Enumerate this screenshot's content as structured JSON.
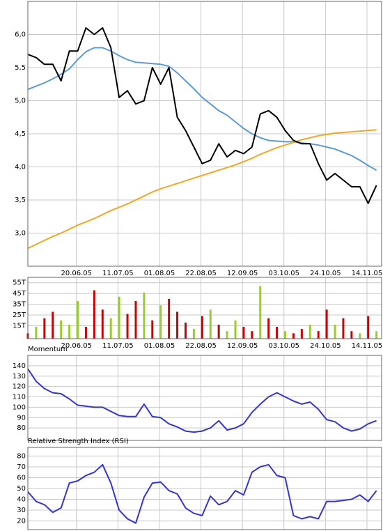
{
  "chart_data": [
    {
      "type": "line",
      "categories": [
        null,
        null,
        null,
        "20.06.05",
        null,
        null,
        null,
        null,
        "11.07.05",
        null,
        null,
        null,
        null,
        "01.08.05",
        null,
        null,
        null,
        null,
        "22.08.05",
        null,
        null,
        null,
        null,
        "12.09.05",
        null,
        null,
        null,
        null,
        "03.10.05",
        null,
        null,
        null,
        null,
        "24.10.05",
        null,
        null,
        null,
        null,
        "14.11.05",
        null,
        null,
        null,
        null
      ],
      "series": [
        {
          "color": "#5b9bd5",
          "values": [
            5.17,
            5.22,
            5.27,
            5.33,
            5.4,
            5.48,
            5.62,
            5.74,
            5.8,
            5.8,
            5.75,
            5.68,
            5.62,
            5.58,
            5.57,
            5.56,
            5.55,
            5.52,
            5.42,
            5.3,
            5.18,
            5.05,
            4.95,
            4.85,
            4.78,
            4.68,
            4.58,
            4.5,
            4.44,
            4.4,
            4.39,
            4.38,
            4.38,
            4.36,
            4.35,
            4.33,
            4.3,
            4.27,
            4.22,
            4.17,
            4.1,
            4.02,
            3.95
          ]
        },
        {
          "color": "#f5a623",
          "values": [
            2.77,
            2.83,
            2.89,
            2.95,
            3.0,
            3.06,
            3.12,
            3.17,
            3.22,
            3.28,
            3.34,
            3.39,
            3.44,
            3.5,
            3.56,
            3.62,
            3.67,
            3.71,
            3.75,
            3.79,
            3.83,
            3.87,
            3.91,
            3.95,
            3.99,
            4.03,
            4.08,
            4.13,
            4.19,
            4.24,
            4.29,
            4.33,
            4.37,
            4.41,
            4.44,
            4.47,
            4.49,
            4.51,
            4.52,
            4.53,
            4.54,
            4.55,
            4.56
          ]
        },
        {
          "color": "#000000",
          "values": [
            5.7,
            5.65,
            5.55,
            5.55,
            5.3,
            5.75,
            5.75,
            6.1,
            6.0,
            6.1,
            5.8,
            5.05,
            5.15,
            4.95,
            5.0,
            5.5,
            5.25,
            5.5,
            4.75,
            4.55,
            4.3,
            4.05,
            4.1,
            4.35,
            4.15,
            4.25,
            4.2,
            4.3,
            4.8,
            4.85,
            4.75,
            4.55,
            4.4,
            4.35,
            4.35,
            4.05,
            3.8,
            3.9,
            3.8,
            3.7,
            3.7,
            3.45,
            3.72
          ]
        }
      ],
      "ylim": [
        2.5,
        6.5
      ],
      "yticks": [
        {
          "value": 3,
          "label": "3,0"
        },
        {
          "value": 3.5,
          "label": "3,5"
        },
        {
          "value": 4,
          "label": "4,0"
        },
        {
          "value": 4.5,
          "label": "4,5"
        },
        {
          "value": 5,
          "label": "5,0"
        },
        {
          "value": 5.5,
          "label": "5,5"
        },
        {
          "value": 6,
          "label": "6,0"
        }
      ],
      "grid": true
    },
    {
      "type": "bar",
      "categories": [
        null,
        null,
        null,
        "20.06.05",
        null,
        null,
        null,
        null,
        "11.07.05",
        null,
        null,
        null,
        null,
        "01.08.05",
        null,
        null,
        null,
        null,
        "22.08.05",
        null,
        null,
        null,
        null,
        "12.09.05",
        null,
        null,
        null,
        null,
        "03.10.05",
        null,
        null,
        null,
        null,
        "24.10.05",
        null,
        null,
        null,
        null,
        "14.11.05",
        null,
        null,
        null,
        null
      ],
      "values": [
        8,
        14,
        22,
        28,
        20,
        16,
        38,
        14,
        48,
        30,
        22,
        42,
        26,
        38,
        46,
        20,
        34,
        40,
        28,
        18,
        12,
        24,
        30,
        16,
        10,
        20,
        14,
        10,
        52,
        22,
        14,
        10,
        8,
        12,
        16,
        10,
        30,
        16,
        22,
        10,
        8,
        24,
        10
      ],
      "colors": [
        "#cc0000",
        "#99cc33",
        "#cc0000",
        "#cc0000",
        "#99cc33",
        "#99cc33",
        "#99cc33",
        "#cc0000",
        "#cc0000",
        "#cc0000",
        "#99cc33",
        "#99cc33",
        "#cc0000",
        "#cc0000",
        "#99cc33",
        "#cc0000",
        "#99cc33",
        "#cc0000",
        "#cc0000",
        "#cc0000",
        "#99cc33",
        "#cc0000",
        "#99cc33",
        "#cc0000",
        "#99cc33",
        "#99cc33",
        "#cc0000",
        "#cc0000",
        "#99cc33",
        "#cc0000",
        "#cc0000",
        "#99cc33",
        "#cc0000",
        "#cc0000",
        "#99cc33",
        "#cc0000",
        "#cc0000",
        "#99cc33",
        "#cc0000",
        "#cc0000",
        "#99cc33",
        "#cc0000",
        "#99cc33"
      ],
      "ylim": [
        3,
        60
      ],
      "yticks": [
        {
          "value": 15,
          "label": "15T"
        },
        {
          "value": 25,
          "label": "25T"
        },
        {
          "value": 35,
          "label": "35T"
        },
        {
          "value": 45,
          "label": "45T"
        },
        {
          "value": 55,
          "label": "55T"
        }
      ],
      "grid": true
    },
    {
      "type": "line",
      "title": "Momentum",
      "series": [
        {
          "color": "#3333dd",
          "values": [
            137,
            125,
            118,
            114,
            113,
            108,
            102,
            101,
            100,
            100,
            96,
            92,
            91,
            91,
            103,
            91,
            90,
            84,
            81,
            77,
            76,
            77,
            80,
            87,
            78,
            80,
            84,
            95,
            103,
            110,
            114,
            110,
            106,
            103,
            105,
            98,
            88,
            86,
            80,
            77,
            79,
            84,
            87
          ]
        }
      ],
      "ylim": [
        68,
        150
      ],
      "yticks": [
        80,
        90,
        100,
        110,
        120,
        130,
        140
      ],
      "grid": true
    },
    {
      "type": "line",
      "title": "Relative Strength Index (RSI)",
      "series": [
        {
          "color": "#3333dd",
          "values": [
            47,
            38,
            35,
            28,
            32,
            55,
            57,
            62,
            65,
            72,
            55,
            30,
            22,
            18,
            42,
            55,
            56,
            48,
            45,
            32,
            27,
            25,
            43,
            35,
            38,
            48,
            44,
            65,
            70,
            72,
            62,
            60,
            25,
            22,
            24,
            22,
            38,
            38,
            39,
            40,
            44,
            38,
            48
          ]
        }
      ],
      "ylim": [
        12,
        88
      ],
      "yticks": [
        20,
        30,
        40,
        50,
        60,
        70,
        80
      ],
      "grid": true
    }
  ]
}
